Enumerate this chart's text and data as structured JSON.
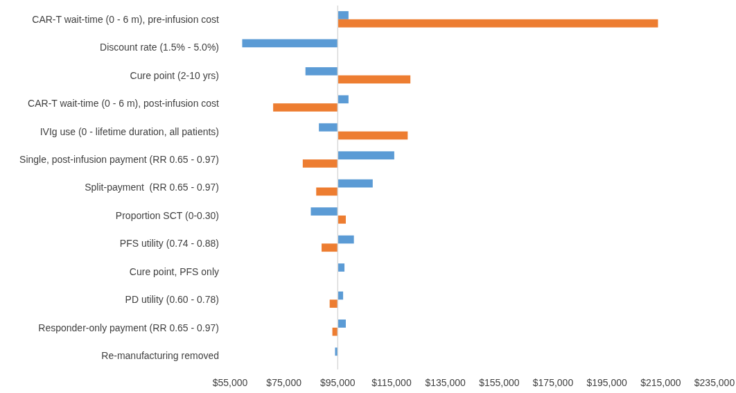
{
  "chart_data": {
    "type": "bar",
    "orientation": "horizontal",
    "categories": [
      "CAR-T wait-time (0 - 6 m), pre-infusion cost",
      "Discount rate (1.5% - 5.0%)",
      "Cure point (2-10 yrs)",
      "CAR-T wait-time (0 - 6 m), post-infusion cost",
      "IVIg use (0 - lifetime duration, all patients)",
      "Single, post-infusion payment (RR 0.65 - 0.97)",
      "Split-payment  (RR 0.65 - 0.97)",
      "Proportion SCT (0-0.30)",
      "PFS utility (0.74 - 0.88)",
      "Cure point, PFS only",
      "PD utility (0.60 - 0.78)",
      "Responder-only payment (RR 0.65 - 0.97)",
      "Re-manufacturing removed"
    ],
    "series": [
      {
        "color": "#5b9bd5",
        "base": [
          95000,
          95000,
          95000,
          95000,
          95000,
          95000,
          95000,
          95000,
          95000,
          95000,
          95000,
          95000,
          95000
        ],
        "values": [
          4000,
          -35500,
          -12000,
          4000,
          -7000,
          21000,
          13000,
          -10000,
          6000,
          2500,
          2000,
          3000,
          -1000
        ]
      },
      {
        "color": "#ed7d31",
        "base": [
          95000,
          null,
          95000,
          95000,
          95000,
          95000,
          95000,
          95000,
          95000,
          null,
          95000,
          95000,
          null
        ],
        "values": [
          119000,
          null,
          27000,
          -24000,
          26000,
          -13000,
          -8000,
          3000,
          -6000,
          null,
          -3000,
          -2000,
          null
        ]
      }
    ],
    "xlim": [
      55000,
      235000
    ],
    "xticks": [
      {
        "value": 55000,
        "label": "$55,000"
      },
      {
        "value": 75000,
        "label": "$75,000"
      },
      {
        "value": 95000,
        "label": "$95,000"
      },
      {
        "value": 115000,
        "label": "$115,000"
      },
      {
        "value": 135000,
        "label": "$135,000"
      },
      {
        "value": 155000,
        "label": "$155,000"
      },
      {
        "value": 175000,
        "label": "$175,000"
      },
      {
        "value": 195000,
        "label": "$195,000"
      },
      {
        "value": 215000,
        "label": "$215,000"
      },
      {
        "value": 235000,
        "label": "$235,000"
      }
    ],
    "ref_lines": [
      {
        "axis": "x",
        "value": 95000,
        "color": "#d9d9d9"
      }
    ],
    "grid": false
  }
}
